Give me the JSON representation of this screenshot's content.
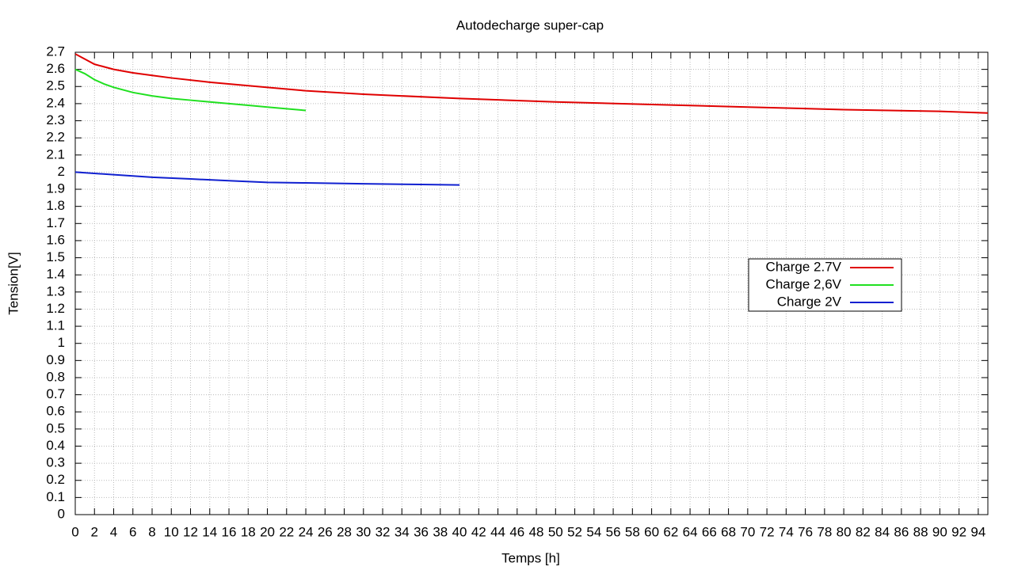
{
  "chart_data": {
    "type": "line",
    "title": "Autodecharge super-cap",
    "x_label": "Temps [h]",
    "y_label": "Tension[V]",
    "xlim": [
      0,
      95
    ],
    "ylim": [
      0,
      2.7
    ],
    "xticks": [
      0,
      2,
      4,
      6,
      8,
      10,
      12,
      14,
      16,
      18,
      20,
      22,
      24,
      26,
      28,
      30,
      32,
      34,
      36,
      38,
      40,
      42,
      44,
      46,
      48,
      50,
      52,
      54,
      56,
      58,
      60,
      62,
      64,
      66,
      68,
      70,
      72,
      74,
      76,
      78,
      80,
      82,
      84,
      86,
      88,
      90,
      92,
      94
    ],
    "yticks": [
      0,
      0.1,
      0.2,
      0.3,
      0.4,
      0.5,
      0.6,
      0.7,
      0.8,
      0.9,
      1,
      1.1,
      1.2,
      1.3,
      1.4,
      1.5,
      1.6,
      1.7,
      1.8,
      1.9,
      2,
      2.1,
      2.2,
      2.3,
      2.4,
      2.5,
      2.6,
      2.7
    ],
    "grid": true,
    "legend_position": "center right",
    "series": [
      {
        "name": "Charge 2.7V",
        "color": "#e00000",
        "x": [
          0,
          1,
          2,
          3,
          4,
          6,
          8,
          10,
          14,
          20,
          24,
          30,
          40,
          50,
          60,
          70,
          80,
          90,
          95
        ],
        "values": [
          2.69,
          2.66,
          2.63,
          2.615,
          2.6,
          2.58,
          2.565,
          2.55,
          2.525,
          2.495,
          2.475,
          2.455,
          2.43,
          2.41,
          2.395,
          2.38,
          2.365,
          2.355,
          2.345
        ]
      },
      {
        "name": "Charge 2,6V",
        "color": "#20e020",
        "x": [
          0,
          1,
          2,
          3,
          4,
          6,
          8,
          10,
          12,
          14,
          16,
          18,
          20,
          22,
          24
        ],
        "values": [
          2.6,
          2.575,
          2.54,
          2.515,
          2.495,
          2.465,
          2.445,
          2.43,
          2.42,
          2.41,
          2.4,
          2.39,
          2.38,
          2.37,
          2.36
        ]
      },
      {
        "name": "Charge 2V",
        "color": "#1020d0",
        "x": [
          0,
          4,
          8,
          12,
          16,
          20,
          24,
          30,
          36,
          40
        ],
        "values": [
          2.0,
          1.985,
          1.97,
          1.96,
          1.95,
          1.94,
          1.937,
          1.932,
          1.928,
          1.925
        ]
      }
    ]
  }
}
